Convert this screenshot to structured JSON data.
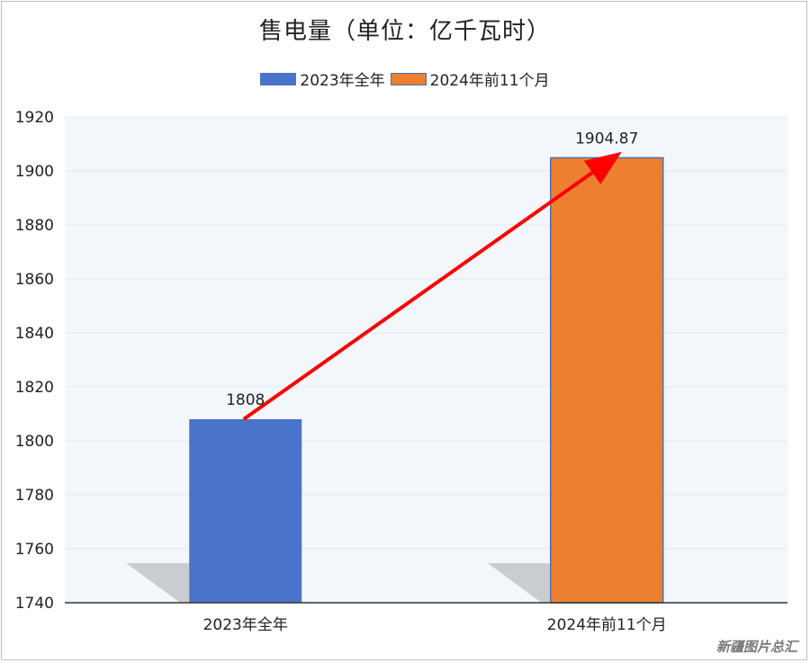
{
  "chart_data": {
    "type": "bar",
    "title": "售电量（单位：亿千瓦时）",
    "categories": [
      "2023年全年",
      "2024年前11个月"
    ],
    "series": [
      {
        "name": "2023年全年",
        "values": [
          1808,
          null
        ]
      },
      {
        "name": "2024年前11个月",
        "values": [
          null,
          1904.87
        ]
      }
    ],
    "values": [
      1808,
      1904.87
    ],
    "data_labels": [
      "1808",
      "1904.87"
    ],
    "colors": [
      "#4a74c9",
      "#ed8030"
    ],
    "bar_border_color": "#4a6fb3",
    "plot_background": "#f3f7fb",
    "arrow_color": "#ff0000",
    "ylim": [
      1740,
      1920
    ],
    "yticks": [
      1740,
      1760,
      1780,
      1800,
      1820,
      1840,
      1860,
      1880,
      1900,
      1920
    ],
    "grid": true,
    "legend": "top-center",
    "xlabel": "",
    "ylabel": "",
    "annotation": "arrow from 2023年全年 bar top to 2024年前11个月 bar top"
  },
  "watermark": "新疆图片总汇"
}
